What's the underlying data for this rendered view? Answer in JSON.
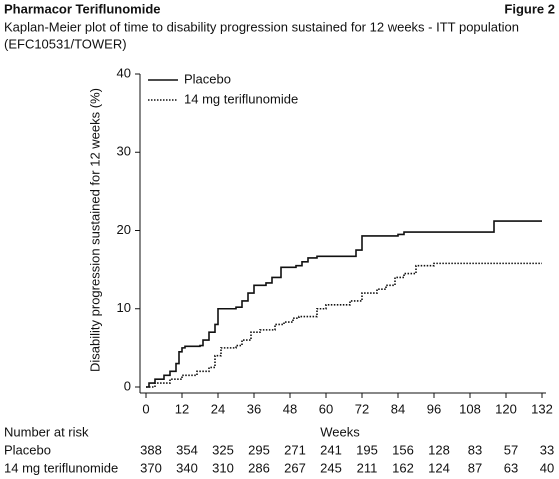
{
  "chart_data": {
    "type": "line",
    "drawstyle": "steps-post",
    "header": "Pharmacor Teriflunomide",
    "figure_label": "Figure 2",
    "title_lines": [
      "Kaplan-Meier plot of time to disability progression sustained for 12 weeks - ITT population",
      "(EFC10531/TOWER)"
    ],
    "y_label": "Disability progression sustained for 12 weeks (%)",
    "x_label": "Weeks",
    "xlim": [
      0,
      132
    ],
    "xticks": [
      0,
      12,
      24,
      36,
      48,
      60,
      72,
      84,
      96,
      108,
      120,
      132
    ],
    "ylim": [
      0,
      40
    ],
    "yticks": [
      0,
      10,
      20,
      30,
      40
    ],
    "legend": "upper-left",
    "series": [
      {
        "name": "Placebo",
        "color": "#111111",
        "dash": "solid",
        "x": [
          0,
          1,
          3,
          6,
          8,
          10,
          11,
          12,
          13,
          18,
          19,
          21,
          23,
          24,
          30,
          32,
          34,
          36,
          40,
          42,
          45,
          50,
          52,
          54,
          57,
          70,
          72,
          84,
          86,
          116,
          132
        ],
        "values": [
          0,
          0.5,
          1,
          1.5,
          2,
          3,
          4.5,
          5,
          5.2,
          5.3,
          6,
          7,
          8,
          10,
          10.2,
          11,
          12,
          13,
          13.3,
          14,
          15.3,
          15.5,
          16,
          16.5,
          16.7,
          17.5,
          19.3,
          19.5,
          19.8,
          21.2,
          21.2
        ]
      },
      {
        "name": "14 mg teriflunomide",
        "color": "#111111",
        "dash": "dotted",
        "x": [
          0,
          3,
          8,
          12,
          17,
          21,
          23,
          25,
          30,
          32,
          35,
          38,
          43,
          46,
          49,
          51,
          57,
          60,
          68,
          72,
          77,
          80,
          83,
          86,
          90,
          96,
          132
        ],
        "values": [
          0,
          0.5,
          1,
          1.5,
          2,
          2.5,
          4,
          5,
          5.3,
          6,
          7,
          7.3,
          8,
          8.3,
          8.8,
          9,
          10,
          10.5,
          11,
          12,
          12.5,
          13,
          14,
          14.5,
          15.5,
          15.8,
          15.8
        ]
      }
    ],
    "risk_table": {
      "title": "Number at risk",
      "rows": [
        {
          "name": "Placebo",
          "values": [
            388,
            354,
            325,
            295,
            271,
            241,
            195,
            156,
            128,
            83,
            57,
            33
          ]
        },
        {
          "name": "14 mg teriflunomide",
          "values": [
            370,
            340,
            310,
            286,
            267,
            245,
            211,
            162,
            124,
            87,
            63,
            40
          ]
        }
      ]
    }
  }
}
